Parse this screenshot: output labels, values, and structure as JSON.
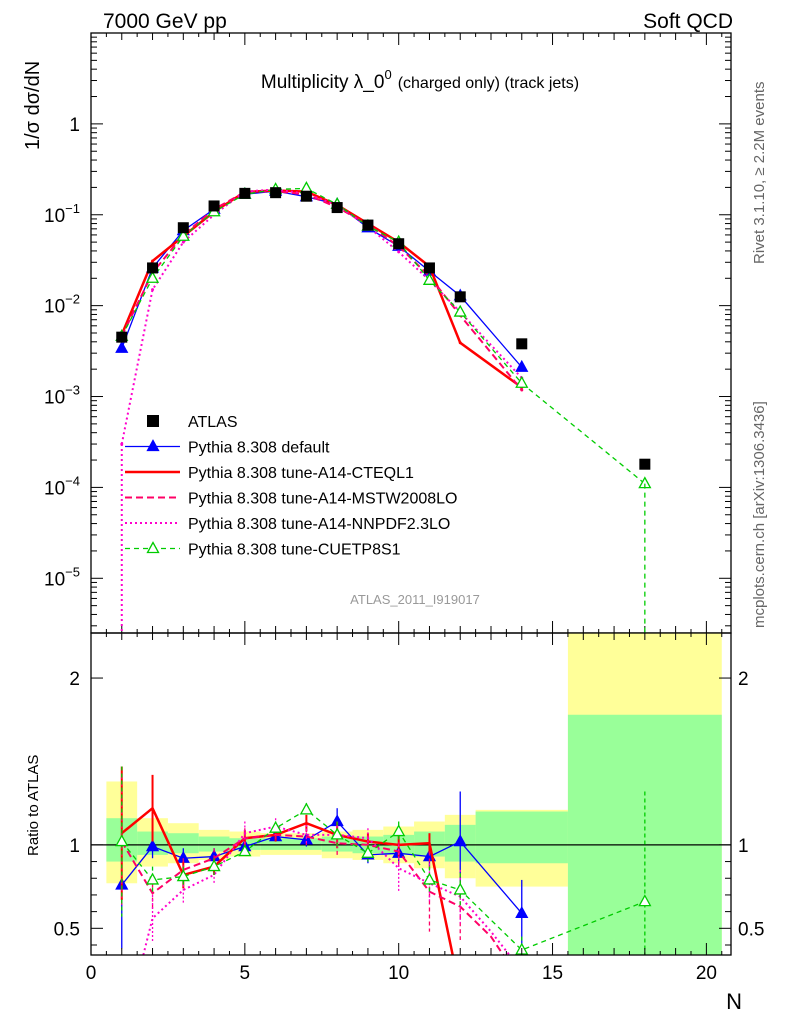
{
  "header": {
    "left": "7000 GeV pp",
    "right": "Soft QCD"
  },
  "side_labels": {
    "upper": "Rivet 3.1.10, ≥ 2.2M events",
    "lower": "mcplots.cern.ch [arXiv:1306.3436]"
  },
  "analysis_id": "ATLAS_2011_I919017",
  "colors": {
    "ATLAS": "#000000",
    "default": "#0000ff",
    "CTEQL1": "#ff0000",
    "MSTW": "#ff0066",
    "NNPDF": "#ff00cc",
    "CUETP8S1": "#00cc00",
    "band_outer": "#ffff99",
    "band_inner": "#99ff99"
  },
  "chart_data": [
    {
      "type": "line",
      "title": "Multiplicity λ_0",
      "title_sup": "0",
      "title_suffix": "(charged only) (track jets)",
      "ylabel": "1/σ dσ/dN",
      "xlim": [
        0,
        20.8
      ],
      "ylim": [
        2.5e-06,
        10
      ],
      "yscale": "log",
      "y_ticks": [
        {
          "value": 1,
          "base": "1",
          "exp": ""
        },
        {
          "value": 0.1,
          "base": "10",
          "exp": "−1"
        },
        {
          "value": 0.01,
          "base": "10",
          "exp": "−2"
        },
        {
          "value": 0.001,
          "base": "10",
          "exp": "−3"
        },
        {
          "value": 0.0001,
          "base": "10",
          "exp": "−4"
        },
        {
          "value": 1e-05,
          "base": "10",
          "exp": "−5"
        }
      ],
      "legend_position": "lower-left",
      "series": [
        {
          "name": "ATLAS",
          "key": "ATLAS",
          "style": "data",
          "x": [
            1,
            2,
            3,
            4,
            5,
            6,
            7,
            8,
            9,
            10,
            11,
            12,
            14,
            18
          ],
          "y": [
            0.0045,
            0.026,
            0.072,
            0.125,
            0.172,
            0.175,
            0.16,
            0.12,
            0.077,
            0.048,
            0.026,
            0.0125,
            0.0038,
            0.00018
          ]
        },
        {
          "name": "Pythia 8.308 default",
          "key": "default",
          "style": "solid-thin",
          "marker": "triangle-filled",
          "x": [
            1,
            2,
            3,
            4,
            5,
            6,
            7,
            8,
            9,
            10,
            11,
            12,
            14
          ],
          "y": [
            0.0034,
            0.026,
            0.067,
            0.115,
            0.168,
            0.182,
            0.158,
            0.13,
            0.072,
            0.045,
            0.024,
            0.0128,
            0.0021
          ]
        },
        {
          "name": "Pythia 8.308 tune-A14-CTEQL1",
          "key": "CTEQL1",
          "style": "solid-thick",
          "x": [
            1,
            2,
            3,
            4,
            5,
            6,
            7,
            8,
            9,
            10,
            11,
            12,
            14
          ],
          "y": [
            0.0048,
            0.031,
            0.058,
            0.108,
            0.178,
            0.185,
            0.18,
            0.128,
            0.08,
            0.05,
            0.027,
            0.0039,
            0.00126
          ]
        },
        {
          "name": "Pythia 8.308 tune-A14-MSTW2008LO",
          "key": "MSTW",
          "style": "dashed",
          "x": [
            1,
            2,
            3,
            4,
            5,
            6,
            7,
            8,
            9,
            10,
            11,
            12,
            14
          ],
          "y": [
            0.0046,
            0.023,
            0.06,
            0.115,
            0.178,
            0.182,
            0.167,
            0.121,
            0.078,
            0.045,
            0.021,
            0.0078,
            0.00118
          ]
        },
        {
          "name": "Pythia 8.308 tune-A14-NNPDF2.3LO",
          "key": "NNPDF",
          "style": "dotted",
          "x": [
            1,
            2,
            3,
            4,
            5,
            6,
            7,
            8,
            9,
            10,
            11,
            12,
            14
          ],
          "y": [
            0.0003,
            0.015,
            0.05,
            0.1,
            0.18,
            0.19,
            0.17,
            0.128,
            0.074,
            0.039,
            0.019,
            0.0085,
            0.0016
          ]
        },
        {
          "name": "Pythia 8.308 tune-CUETP8S1",
          "key": "CUETP8S1",
          "style": "dashed-thin",
          "marker": "triangle-open",
          "x": [
            1,
            2,
            3,
            4,
            5,
            6,
            7,
            8,
            9,
            10,
            11,
            12,
            14,
            18
          ],
          "y": [
            0.0046,
            0.02,
            0.058,
            0.108,
            0.168,
            0.19,
            0.195,
            0.13,
            0.075,
            0.05,
            0.019,
            0.0085,
            0.0014,
            0.00011
          ]
        }
      ]
    },
    {
      "type": "line",
      "ylabel": "Ratio to ATLAS",
      "xlabel": "N",
      "xlim": [
        0,
        20.8
      ],
      "ylim": [
        0.34,
        2.27
      ],
      "x_ticks": [
        0,
        5,
        10,
        15,
        20
      ],
      "y_ticks": [
        0.5,
        1,
        2
      ],
      "band_outer": [
        {
          "x0": 0.5,
          "x1": 1.5,
          "lo": 0.77,
          "hi": 1.38
        },
        {
          "x0": 1.5,
          "x1": 2.5,
          "lo": 0.87,
          "hi": 1.16
        },
        {
          "x0": 2.5,
          "x1": 3.5,
          "lo": 0.89,
          "hi": 1.13
        },
        {
          "x0": 3.5,
          "x1": 4.5,
          "lo": 0.91,
          "hi": 1.09
        },
        {
          "x0": 4.5,
          "x1": 5.5,
          "lo": 0.93,
          "hi": 1.08
        },
        {
          "x0": 5.5,
          "x1": 6.5,
          "lo": 0.94,
          "hi": 1.07
        },
        {
          "x0": 6.5,
          "x1": 7.5,
          "lo": 0.94,
          "hi": 1.07
        },
        {
          "x0": 7.5,
          "x1": 8.5,
          "lo": 0.92,
          "hi": 1.08
        },
        {
          "x0": 8.5,
          "x1": 9.5,
          "lo": 0.91,
          "hi": 1.09
        },
        {
          "x0": 9.5,
          "x1": 10.5,
          "lo": 0.89,
          "hi": 1.11
        },
        {
          "x0": 10.5,
          "x1": 11.5,
          "lo": 0.86,
          "hi": 1.14
        },
        {
          "x0": 11.5,
          "x1": 12.5,
          "lo": 0.8,
          "hi": 1.18
        },
        {
          "x0": 12.5,
          "x1": 15.5,
          "lo": 0.75,
          "hi": 1.21
        },
        {
          "x0": 15.5,
          "x1": 20.5,
          "lo": 0.34,
          "hi": 2.27
        }
      ],
      "band_inner": [
        {
          "x0": 0.5,
          "x1": 1.5,
          "lo": 0.9,
          "hi": 1.16
        },
        {
          "x0": 1.5,
          "x1": 2.5,
          "lo": 0.94,
          "hi": 1.08
        },
        {
          "x0": 2.5,
          "x1": 3.5,
          "lo": 0.95,
          "hi": 1.07
        },
        {
          "x0": 3.5,
          "x1": 4.5,
          "lo": 0.96,
          "hi": 1.05
        },
        {
          "x0": 4.5,
          "x1": 5.5,
          "lo": 0.97,
          "hi": 1.04
        },
        {
          "x0": 5.5,
          "x1": 6.5,
          "lo": 0.97,
          "hi": 1.04
        },
        {
          "x0": 6.5,
          "x1": 7.5,
          "lo": 0.97,
          "hi": 1.04
        },
        {
          "x0": 7.5,
          "x1": 8.5,
          "lo": 0.96,
          "hi": 1.05
        },
        {
          "x0": 8.5,
          "x1": 9.5,
          "lo": 0.95,
          "hi": 1.05
        },
        {
          "x0": 9.5,
          "x1": 10.5,
          "lo": 0.94,
          "hi": 1.06
        },
        {
          "x0": 10.5,
          "x1": 11.5,
          "lo": 0.93,
          "hi": 1.08
        },
        {
          "x0": 11.5,
          "x1": 12.5,
          "lo": 0.9,
          "hi": 1.12
        },
        {
          "x0": 12.5,
          "x1": 15.5,
          "lo": 0.89,
          "hi": 1.2
        },
        {
          "x0": 15.5,
          "x1": 20.5,
          "lo": 0.34,
          "hi": 1.78
        }
      ],
      "series": [
        {
          "name": "Pythia 8.308 default",
          "key": "default",
          "style": "solid-thin",
          "marker": "triangle-filled",
          "x": [
            1,
            2,
            3,
            4,
            5,
            6,
            7,
            8,
            9,
            10,
            11,
            12,
            14
          ],
          "y": [
            0.76,
            0.99,
            0.92,
            0.93,
            0.99,
            1.05,
            1.03,
            1.14,
            0.94,
            0.95,
            0.93,
            1.02,
            0.59
          ],
          "err": [
            0.38,
            0.07,
            0.06,
            0.05,
            0.04,
            0.03,
            0.04,
            0.08,
            0.05,
            0.06,
            0.06,
            0.3,
            0.2
          ]
        },
        {
          "name": "Pythia 8.308 tune-A14-CTEQL1",
          "key": "CTEQL1",
          "style": "solid-thick",
          "x": [
            1,
            2,
            3,
            4,
            5,
            6,
            7,
            8,
            9,
            10,
            11,
            11.8
          ],
          "y": [
            1.07,
            1.22,
            0.82,
            0.87,
            1.04,
            1.06,
            1.13,
            1.06,
            1.02,
            1.0,
            1.01,
            0.3
          ],
          "err": [
            0.4,
            0.2,
            0.08,
            0.05,
            0.05,
            0.04,
            0.05,
            0.08,
            0.05,
            0.07,
            0.06,
            0
          ]
        },
        {
          "name": "Pythia 8.308 tune-A14-MSTW2008LO",
          "key": "MSTW",
          "style": "dashed",
          "x": [
            1,
            2,
            3,
            4,
            5,
            6,
            7,
            8,
            9,
            10,
            11,
            12,
            13,
            13.4
          ],
          "y": [
            1.02,
            0.71,
            0.85,
            0.92,
            1.04,
            1.06,
            1.05,
            1.01,
            1.0,
            0.96,
            0.72,
            0.63,
            0.45,
            0.34
          ],
          "err": [
            0.4,
            0.1,
            0.07,
            0.06,
            0.06,
            0.04,
            0.05,
            0.08,
            0.06,
            0.1,
            0.24,
            0.2,
            0,
            0
          ]
        },
        {
          "name": "Pythia 8.308 tune-A14-NNPDF2.3LO",
          "key": "NNPDF",
          "style": "dotted",
          "x": [
            1.7,
            2,
            3,
            4,
            5,
            6,
            7,
            8,
            9,
            10,
            11,
            12,
            13,
            13.6
          ],
          "y": [
            0.34,
            0.56,
            0.73,
            0.82,
            1.07,
            1.11,
            1.06,
            1.06,
            1.04,
            0.86,
            0.77,
            0.69,
            0.48,
            0.34
          ],
          "err": [
            0,
            0.14,
            0.08,
            0.06,
            0.07,
            0.05,
            0.06,
            0.08,
            0.06,
            0.14,
            0.12,
            0.16,
            0,
            0
          ]
        },
        {
          "name": "Pythia 8.308 tune-CUETP8S1",
          "key": "CUETP8S1",
          "style": "dashed-thin",
          "marker": "triangle-open",
          "x": [
            1,
            2,
            3,
            4,
            5,
            6,
            7,
            8,
            9,
            10,
            11,
            12,
            14,
            18
          ],
          "y": [
            1.02,
            0.79,
            0.81,
            0.87,
            0.96,
            1.1,
            1.21,
            1.06,
            0.95,
            1.08,
            0.79,
            0.73,
            0.37,
            0.66
          ],
          "err": [
            0.45,
            0.08,
            0.06,
            0.05,
            0.04,
            0.04,
            0.04,
            0.08,
            0.05,
            0.06,
            0.08,
            0.1,
            0.08,
            0.66
          ]
        }
      ]
    }
  ]
}
